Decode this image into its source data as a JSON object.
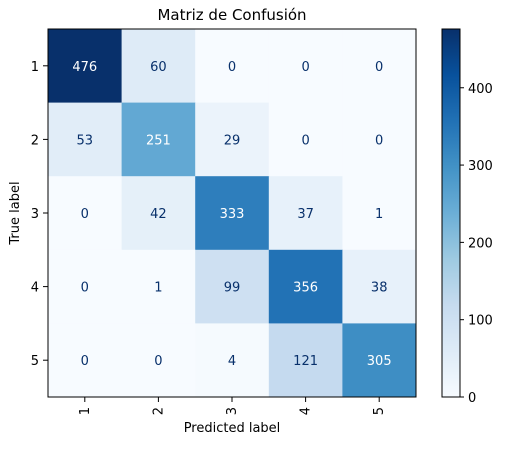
{
  "chart_data": {
    "type": "heatmap",
    "title": "Matriz de Confusión",
    "xlabel": "Predicted label",
    "ylabel": "True label",
    "x_categories": [
      "1",
      "2",
      "3",
      "4",
      "5"
    ],
    "y_categories": [
      "1",
      "2",
      "3",
      "4",
      "5"
    ],
    "values": [
      [
        476,
        60,
        0,
        0,
        0
      ],
      [
        53,
        251,
        29,
        0,
        0
      ],
      [
        0,
        42,
        333,
        37,
        1
      ],
      [
        0,
        1,
        99,
        356,
        38
      ],
      [
        0,
        0,
        4,
        121,
        305
      ]
    ],
    "colormap": "Blues",
    "vmin": 0,
    "vmax": 476,
    "colorbar_ticks": [
      0,
      100,
      200,
      300,
      400
    ],
    "text_color_dark": "#08306b",
    "text_color_light": "#ffffff"
  }
}
